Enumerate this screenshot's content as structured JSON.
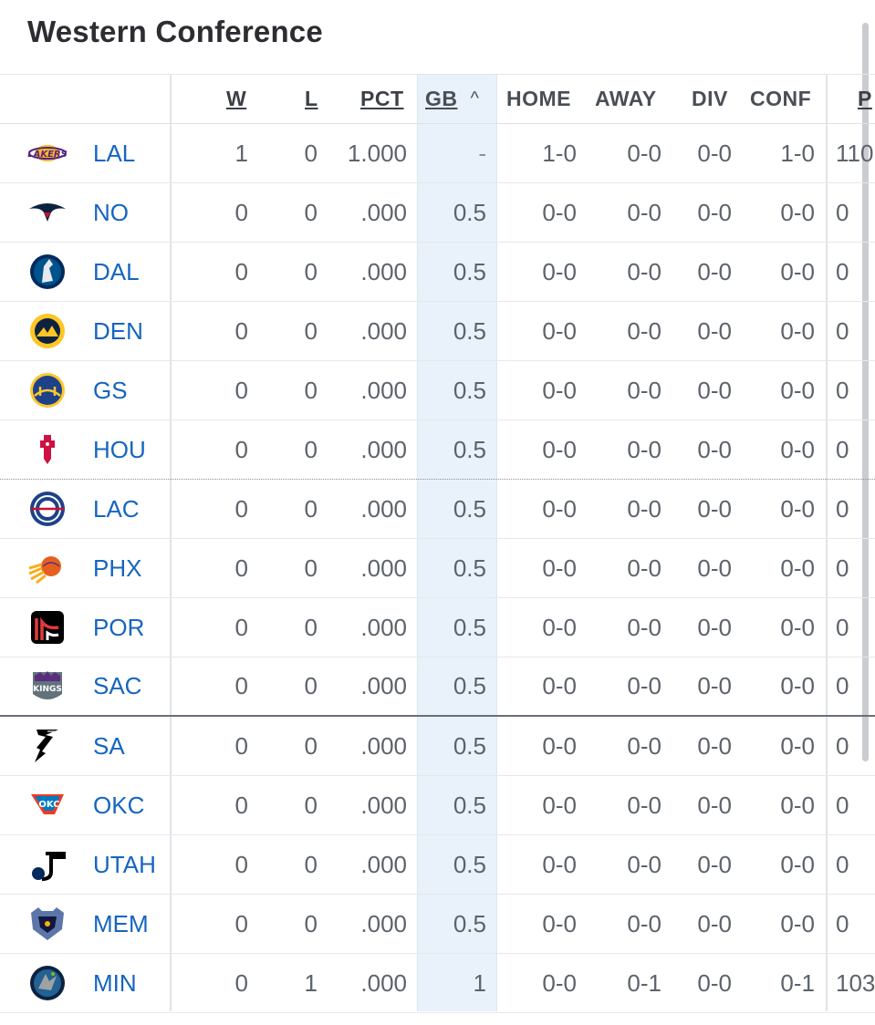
{
  "title": "Western Conference",
  "headers": {
    "w": "W",
    "l": "L",
    "pct": "PCT",
    "gb": "GB",
    "gb_sort_indicator": "^",
    "home": "HOME",
    "away": "AWAY",
    "div": "DIV",
    "conf": "CONF",
    "pf": "P"
  },
  "rows": [
    {
      "team": "LAL",
      "w": "1",
      "l": "0",
      "pct": "1.000",
      "gb": "-",
      "home": "1-0",
      "away": "0-0",
      "div": "0-0",
      "conf": "1-0",
      "pf": "110"
    },
    {
      "team": "NO",
      "w": "0",
      "l": "0",
      "pct": ".000",
      "gb": "0.5",
      "home": "0-0",
      "away": "0-0",
      "div": "0-0",
      "conf": "0-0",
      "pf": "0"
    },
    {
      "team": "DAL",
      "w": "0",
      "l": "0",
      "pct": ".000",
      "gb": "0.5",
      "home": "0-0",
      "away": "0-0",
      "div": "0-0",
      "conf": "0-0",
      "pf": "0"
    },
    {
      "team": "DEN",
      "w": "0",
      "l": "0",
      "pct": ".000",
      "gb": "0.5",
      "home": "0-0",
      "away": "0-0",
      "div": "0-0",
      "conf": "0-0",
      "pf": "0"
    },
    {
      "team": "GS",
      "w": "0",
      "l": "0",
      "pct": ".000",
      "gb": "0.5",
      "home": "0-0",
      "away": "0-0",
      "div": "0-0",
      "conf": "0-0",
      "pf": "0"
    },
    {
      "team": "HOU",
      "w": "0",
      "l": "0",
      "pct": ".000",
      "gb": "0.5",
      "home": "0-0",
      "away": "0-0",
      "div": "0-0",
      "conf": "0-0",
      "pf": "0"
    },
    {
      "team": "LAC",
      "w": "0",
      "l": "0",
      "pct": ".000",
      "gb": "0.5",
      "home": "0-0",
      "away": "0-0",
      "div": "0-0",
      "conf": "0-0",
      "pf": "0"
    },
    {
      "team": "PHX",
      "w": "0",
      "l": "0",
      "pct": ".000",
      "gb": "0.5",
      "home": "0-0",
      "away": "0-0",
      "div": "0-0",
      "conf": "0-0",
      "pf": "0"
    },
    {
      "team": "POR",
      "w": "0",
      "l": "0",
      "pct": ".000",
      "gb": "0.5",
      "home": "0-0",
      "away": "0-0",
      "div": "0-0",
      "conf": "0-0",
      "pf": "0"
    },
    {
      "team": "SAC",
      "w": "0",
      "l": "0",
      "pct": ".000",
      "gb": "0.5",
      "home": "0-0",
      "away": "0-0",
      "div": "0-0",
      "conf": "0-0",
      "pf": "0"
    },
    {
      "team": "SA",
      "w": "0",
      "l": "0",
      "pct": ".000",
      "gb": "0.5",
      "home": "0-0",
      "away": "0-0",
      "div": "0-0",
      "conf": "0-0",
      "pf": "0"
    },
    {
      "team": "OKC",
      "w": "0",
      "l": "0",
      "pct": ".000",
      "gb": "0.5",
      "home": "0-0",
      "away": "0-0",
      "div": "0-0",
      "conf": "0-0",
      "pf": "0"
    },
    {
      "team": "UTAH",
      "w": "0",
      "l": "0",
      "pct": ".000",
      "gb": "0.5",
      "home": "0-0",
      "away": "0-0",
      "div": "0-0",
      "conf": "0-0",
      "pf": "0"
    },
    {
      "team": "MEM",
      "w": "0",
      "l": "0",
      "pct": ".000",
      "gb": "0.5",
      "home": "0-0",
      "away": "0-0",
      "div": "0-0",
      "conf": "0-0",
      "pf": "0"
    },
    {
      "team": "MIN",
      "w": "0",
      "l": "1",
      "pct": ".000",
      "gb": "1",
      "home": "0-0",
      "away": "0-1",
      "div": "0-0",
      "conf": "0-1",
      "pf": "103"
    }
  ],
  "logos": {
    "LAL": {
      "icon": "lakers-logo-icon",
      "primary": "#552583",
      "secondary": "#FDB927"
    },
    "NO": {
      "icon": "pelicans-logo-icon",
      "primary": "#0C2340",
      "secondary": "#C8102E"
    },
    "DAL": {
      "icon": "mavericks-logo-icon",
      "primary": "#00538C",
      "secondary": "#002B5E"
    },
    "DEN": {
      "icon": "nuggets-logo-icon",
      "primary": "#0E2240",
      "secondary": "#FEC524"
    },
    "GS": {
      "icon": "warriors-logo-icon",
      "primary": "#1D428A",
      "secondary": "#FFC72C"
    },
    "HOU": {
      "icon": "rockets-logo-icon",
      "primary": "#CE1141",
      "secondary": "#C4CED4"
    },
    "LAC": {
      "icon": "clippers-logo-icon",
      "primary": "#1D428A",
      "secondary": "#C8102E"
    },
    "PHX": {
      "icon": "suns-logo-icon",
      "primary": "#E56020",
      "secondary": "#F9AD1B"
    },
    "POR": {
      "icon": "trail-blazers-logo-icon",
      "primary": "#E03A3E",
      "secondary": "#000000"
    },
    "SAC": {
      "icon": "kings-logo-icon",
      "primary": "#5A2D81",
      "secondary": "#63727A"
    },
    "SA": {
      "icon": "spurs-logo-icon",
      "primary": "#000000",
      "secondary": "#C4CED4"
    },
    "OKC": {
      "icon": "thunder-logo-icon",
      "primary": "#007AC1",
      "secondary": "#EF3B24"
    },
    "UTAH": {
      "icon": "jazz-logo-icon",
      "primary": "#002B5C",
      "secondary": "#000000"
    },
    "MEM": {
      "icon": "grizzlies-logo-icon",
      "primary": "#5D76A9",
      "secondary": "#12173F"
    },
    "MIN": {
      "icon": "timberwolves-logo-icon",
      "primary": "#0C2340",
      "secondary": "#236192"
    }
  },
  "colors": {
    "team_link": "#1565c0",
    "gb_highlight": "#e9f1fa"
  }
}
